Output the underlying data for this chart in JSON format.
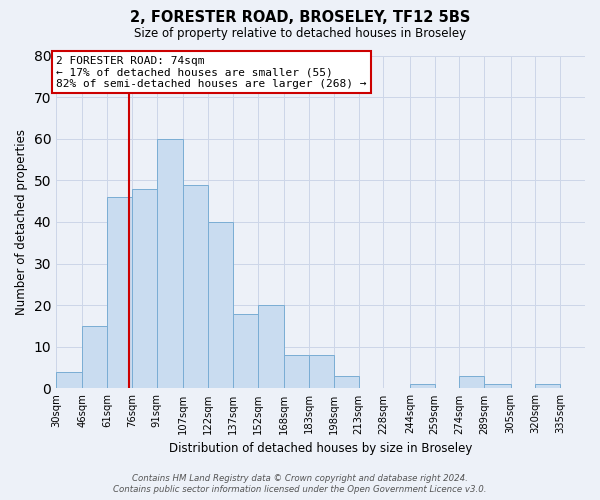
{
  "title1": "2, FORESTER ROAD, BROSELEY, TF12 5BS",
  "title2": "Size of property relative to detached houses in Broseley",
  "xlabel": "Distribution of detached houses by size in Broseley",
  "ylabel": "Number of detached properties",
  "bin_labels": [
    "30sqm",
    "46sqm",
    "61sqm",
    "76sqm",
    "91sqm",
    "107sqm",
    "122sqm",
    "137sqm",
    "152sqm",
    "168sqm",
    "183sqm",
    "198sqm",
    "213sqm",
    "228sqm",
    "244sqm",
    "259sqm",
    "274sqm",
    "289sqm",
    "305sqm",
    "320sqm",
    "335sqm"
  ],
  "bar_heights": [
    4,
    15,
    46,
    48,
    60,
    49,
    40,
    18,
    20,
    8,
    8,
    3,
    0,
    0,
    1,
    0,
    3,
    1,
    0,
    1,
    0
  ],
  "bar_color": "#c9dcf0",
  "bar_edge_color": "#7aadd4",
  "vline_x": 74,
  "bin_edges_values": [
    30,
    46,
    61,
    76,
    91,
    107,
    122,
    137,
    152,
    168,
    183,
    198,
    213,
    228,
    244,
    259,
    274,
    289,
    305,
    320,
    335,
    350
  ],
  "annotation_line1": "2 FORESTER ROAD: 74sqm",
  "annotation_line2": "← 17% of detached houses are smaller (55)",
  "annotation_line3": "82% of semi-detached houses are larger (268) →",
  "annotation_box_color": "white",
  "annotation_box_edge": "#cc0000",
  "ylim": [
    0,
    80
  ],
  "yticks": [
    0,
    10,
    20,
    30,
    40,
    50,
    60,
    70,
    80
  ],
  "footer1": "Contains HM Land Registry data © Crown copyright and database right 2024.",
  "footer2": "Contains public sector information licensed under the Open Government Licence v3.0.",
  "grid_color": "#cdd6e8",
  "vline_color": "#cc0000",
  "bg_color": "#edf1f8"
}
